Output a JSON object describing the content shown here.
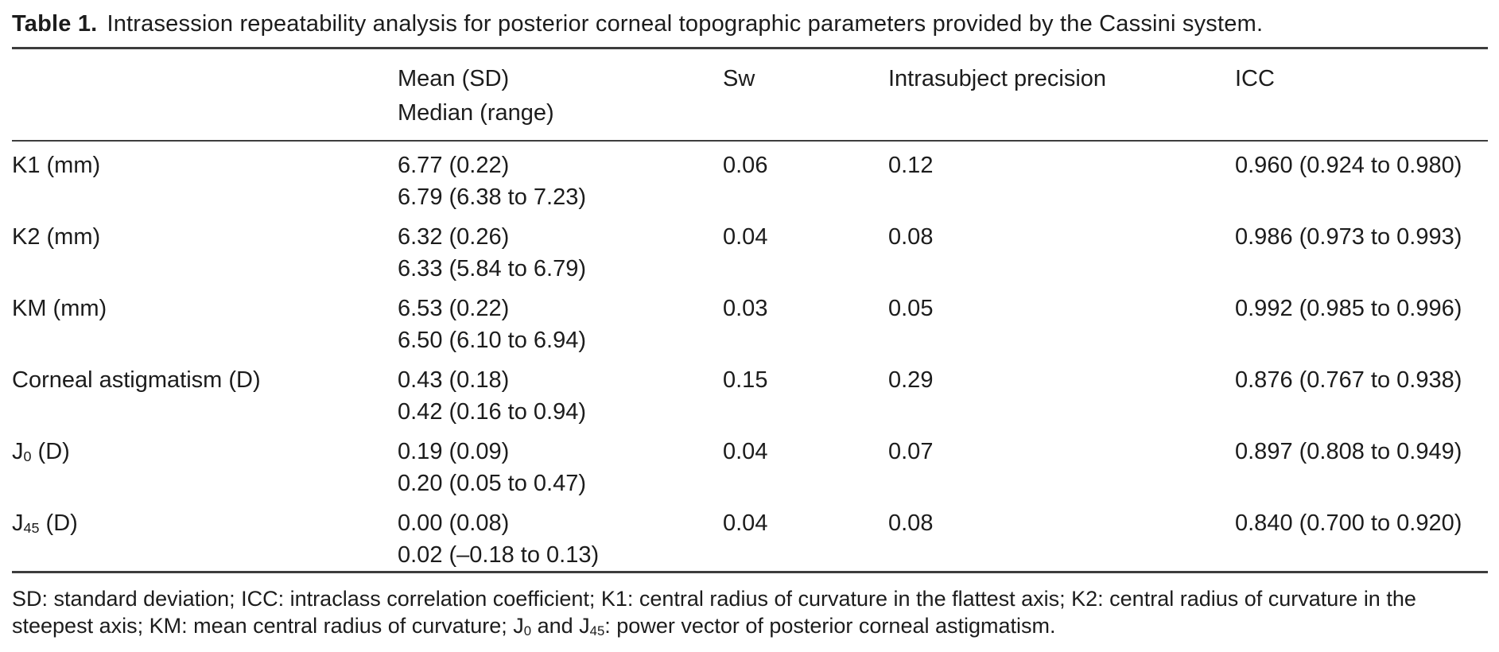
{
  "title": {
    "label": "Table 1.",
    "text": "Intrasession repeatability analysis for posterior corneal topographic parameters provided by the Cassini system."
  },
  "table": {
    "headers": {
      "parameter": "",
      "mean_line1": "Mean (SD)",
      "mean_line2": "Median (range)",
      "sw": "Sw",
      "precision": "Intrasubject precision",
      "icc": "ICC"
    },
    "rows": [
      {
        "param": [
          {
            "t": "K1 (mm)"
          }
        ],
        "mean_sd": "6.77 (0.22)",
        "median_range": "6.79 (6.38 to 7.23)",
        "sw": "0.06",
        "precision": "0.12",
        "icc": "0.960 (0.924 to 0.980)"
      },
      {
        "param": [
          {
            "t": "K2 (mm)"
          }
        ],
        "mean_sd": "6.32 (0.26)",
        "median_range": "6.33 (5.84 to 6.79)",
        "sw": "0.04",
        "precision": "0.08",
        "icc": "0.986 (0.973 to 0.993)"
      },
      {
        "param": [
          {
            "t": "KM (mm)"
          }
        ],
        "mean_sd": "6.53 (0.22)",
        "median_range": "6.50 (6.10 to 6.94)",
        "sw": "0.03",
        "precision": "0.05",
        "icc": "0.992 (0.985 to 0.996)"
      },
      {
        "param": [
          {
            "t": "Corneal astigmatism (D)"
          }
        ],
        "mean_sd": "0.43 (0.18)",
        "median_range": "0.42 (0.16 to 0.94)",
        "sw": "0.15",
        "precision": "0.29",
        "icc": "0.876 (0.767 to 0.938)"
      },
      {
        "param": [
          {
            "t": "J"
          },
          {
            "t": "0",
            "sub": true
          },
          {
            "t": " (D)"
          }
        ],
        "mean_sd": "0.19 (0.09)",
        "median_range": "0.20 (0.05 to 0.47)",
        "sw": "0.04",
        "precision": "0.07",
        "icc": "0.897 (0.808 to 0.949)"
      },
      {
        "param": [
          {
            "t": "J"
          },
          {
            "t": "45",
            "sub": true
          },
          {
            "t": " (D)"
          }
        ],
        "mean_sd": "0.00 (0.08)",
        "median_range": "0.02 (–0.18 to 0.13)",
        "sw": "0.04",
        "precision": "0.08",
        "icc": "0.840 (0.700 to 0.920)"
      }
    ]
  },
  "footnote": {
    "segments": [
      {
        "t": "SD: standard deviation; ICC: intraclass correlation coefficient; K1: central radius of curvature in the flattest axis; K2: central radius of curvature in the steepest axis; KM: mean central radius of curvature; J"
      },
      {
        "t": "0",
        "sub": true
      },
      {
        "t": " and J"
      },
      {
        "t": "45",
        "sub": true
      },
      {
        "t": ": power vector of posterior corneal astigmatism."
      }
    ]
  },
  "colors": {
    "background": "#ffffff",
    "text": "#1c1c1c",
    "rule": "#3d3d3d"
  }
}
